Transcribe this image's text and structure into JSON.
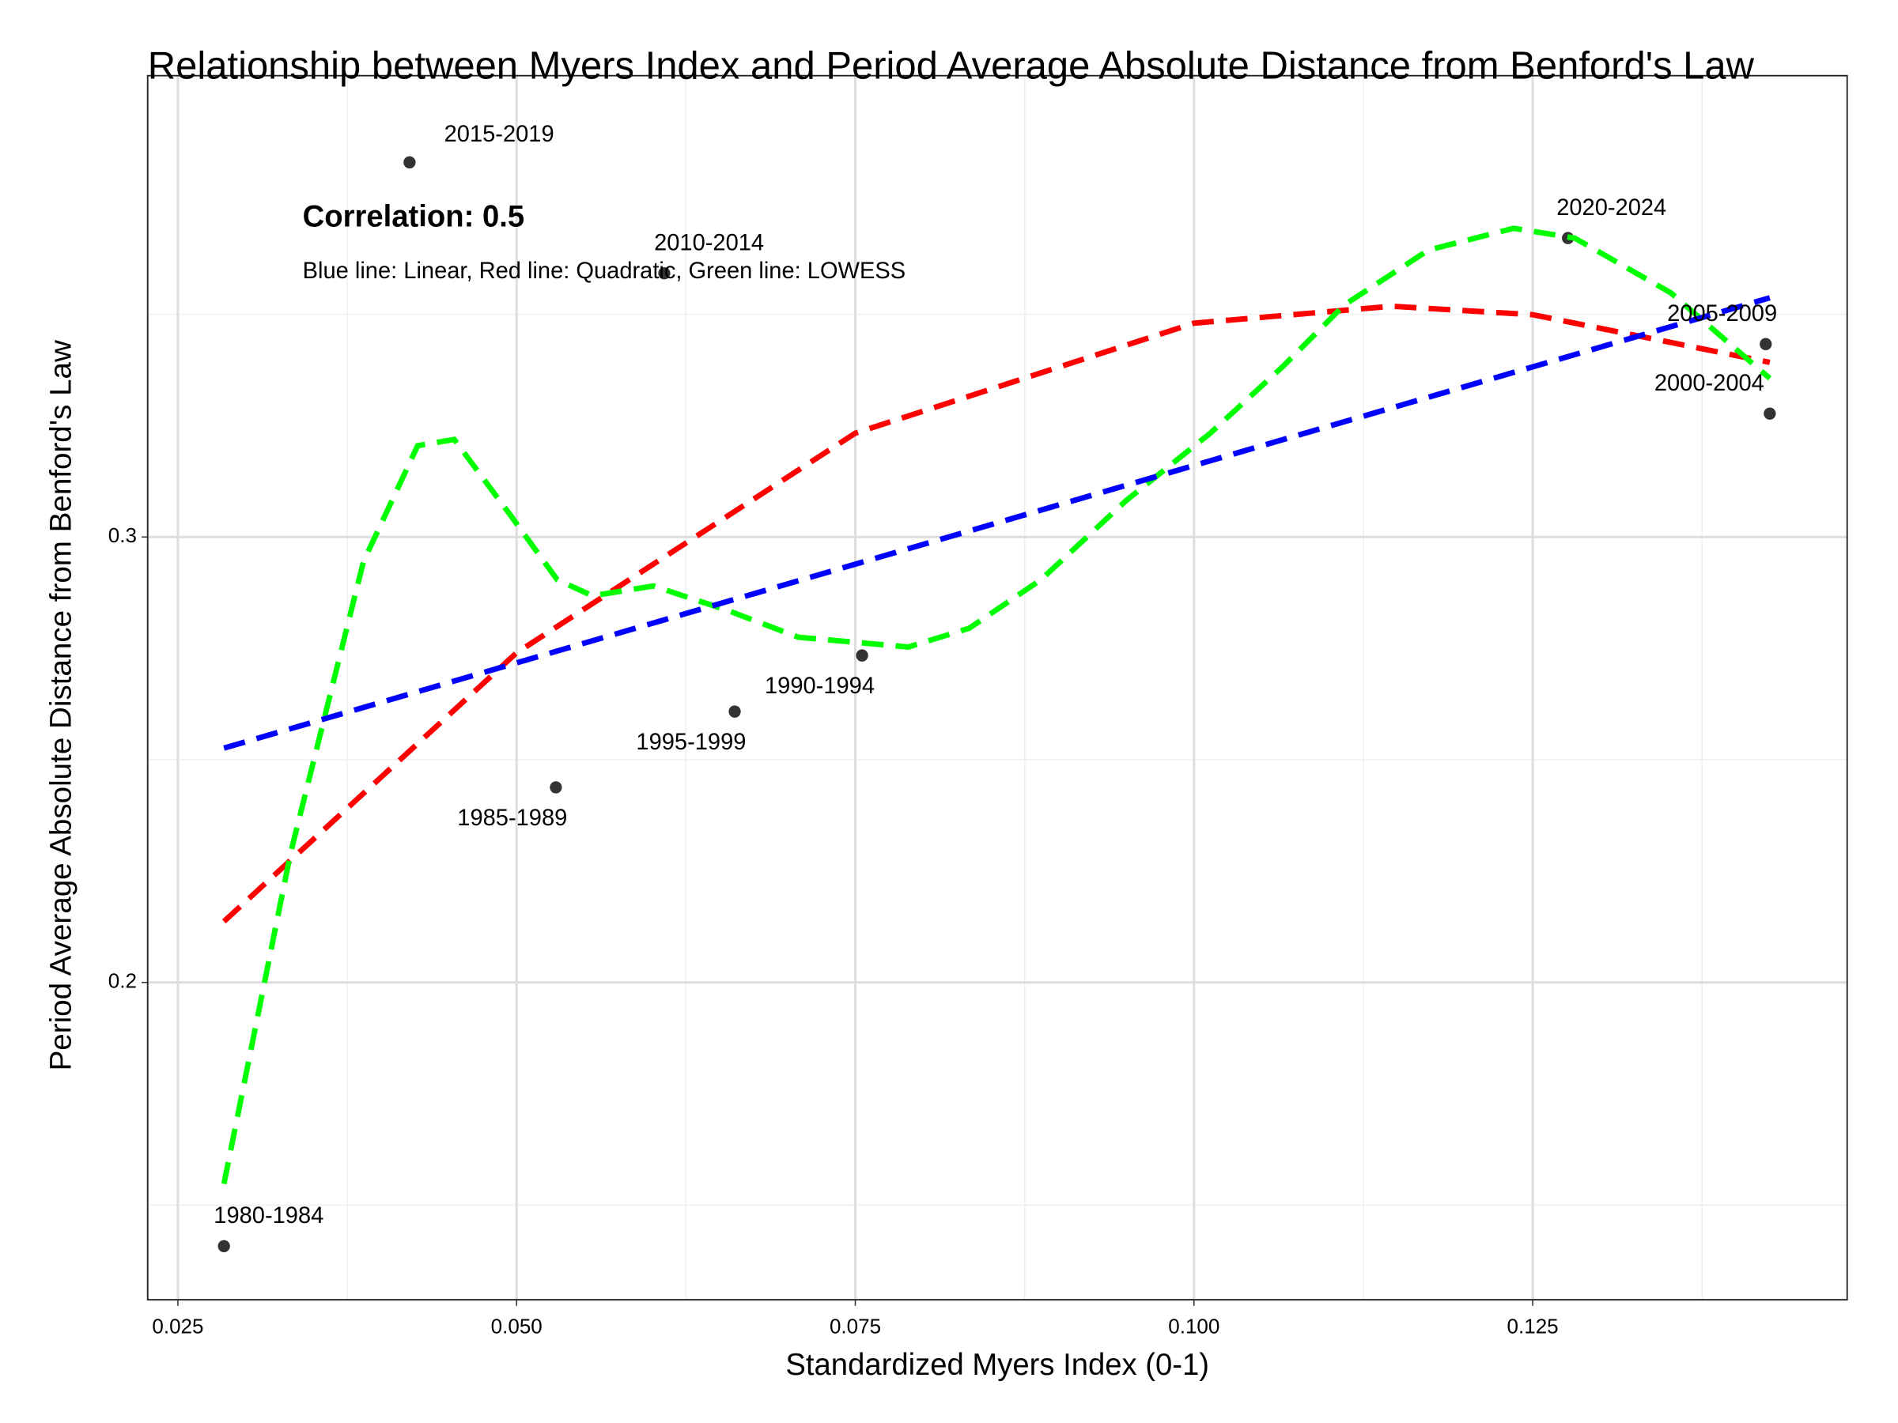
{
  "chart_data": {
    "type": "scatter",
    "title": "Relationship between Myers Index and Period Average Absolute Distance from Benford's Law",
    "x_label": "Standardized Myers Index (0-1)",
    "y_label": "Period Average Absolute Distance from Benford's Law",
    "annotations": [
      "Correlation: 0.5",
      "Blue line: Linear, Red line: Quadratic, Green line: LOWESS"
    ],
    "xlim": [
      0.02277,
      0.14821
    ],
    "ylim": [
      0.12877,
      0.40356
    ],
    "xticks": [
      0.025,
      {
        "value": 0.05,
        "label": "0.050"
      },
      0.075,
      {
        "value": 0.1,
        "label": "0.100"
      },
      0.125
    ],
    "yticks": [
      0.2,
      0.3
    ],
    "x_minor_ticks": [
      0.0375,
      0.0625,
      0.0875,
      0.1125,
      0.1375
    ],
    "y_minor_ticks": [
      0.15,
      0.25,
      0.35
    ],
    "grid": true,
    "points": {
      "color": "#333333",
      "labels": [
        "1980-1984",
        "1985-1989",
        "1990-1994",
        "1995-1999",
        "2000-2004",
        "2005-2009",
        "2010-2014",
        "2015-2019",
        "2020-2024"
      ],
      "x": [
        0.0284,
        0.0529,
        0.0755,
        0.0661,
        0.1425,
        0.1422,
        0.0609,
        0.0421,
        0.1276
      ],
      "y": [
        0.1408,
        0.2438,
        0.2734,
        0.2608,
        0.3277,
        0.3433,
        0.3592,
        0.3841,
        0.3671
      ]
    },
    "lines": [
      {
        "color": "#ff0000",
        "x": [
          0.0284,
          0.05,
          0.075,
          0.1,
          0.1146,
          0.125,
          0.1425
        ],
        "y": [
          0.2137,
          0.274,
          0.3233,
          0.348,
          0.3518,
          0.3499,
          0.3392
        ]
      },
      {
        "color": "#00ff00",
        "x": [
          0.0284,
          0.0333,
          0.0387,
          0.0427,
          0.0454,
          0.0494,
          0.053,
          0.0556,
          0.0601,
          0.0655,
          0.0708,
          0.0789,
          0.0834,
          0.0887,
          0.095,
          0.1012,
          0.1066,
          0.1111,
          0.1173,
          0.1236,
          0.1281,
          0.1352,
          0.1425
        ],
        "y": [
          0.1548,
          0.2288,
          0.2945,
          0.3205,
          0.3219,
          0.3055,
          0.2904,
          0.2868,
          0.289,
          0.2836,
          0.2775,
          0.2753,
          0.2795,
          0.2904,
          0.3082,
          0.3233,
          0.3384,
          0.3521,
          0.3644,
          0.3693,
          0.3671,
          0.3548,
          0.3356
        ]
      },
      {
        "color": "#0000ff",
        "x": [
          0.0284,
          0.1425
        ],
        "y": [
          0.2526,
          0.3537
        ]
      }
    ]
  }
}
